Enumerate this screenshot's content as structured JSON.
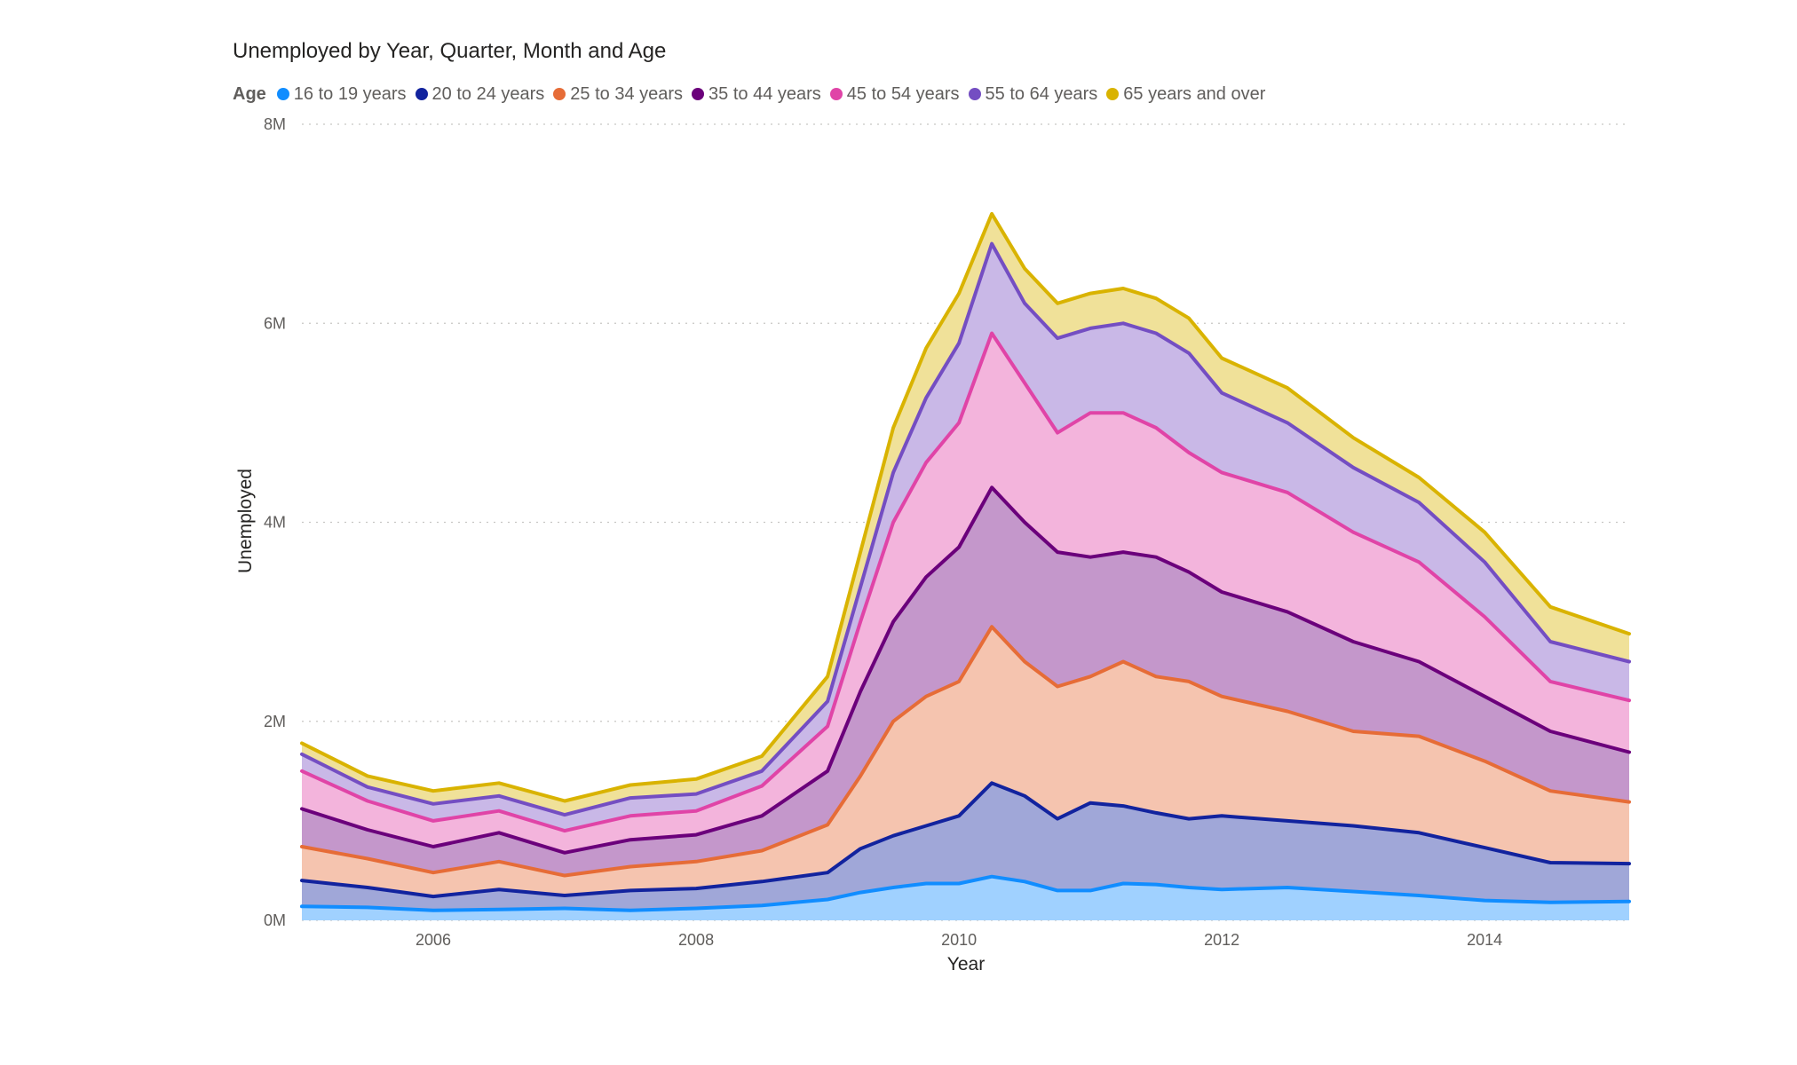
{
  "chart_data": {
    "type": "area",
    "stacked": true,
    "title": "Unemployed by Year, Quarter, Month and Age",
    "legend_title": "Age",
    "legend_position": "top-left",
    "xlabel": "Year",
    "ylabel": "Unemployed",
    "x_range": [
      2005.0,
      2015.1
    ],
    "x_ticks": [
      2006,
      2008,
      2010,
      2012,
      2014
    ],
    "x_tick_labels": [
      "2006",
      "2008",
      "2010",
      "2012",
      "2014"
    ],
    "y_range": [
      0,
      8000000
    ],
    "y_ticks": [
      0,
      2000000,
      4000000,
      6000000,
      8000000
    ],
    "y_tick_labels": [
      "0M",
      "2M",
      "4M",
      "6M",
      "8M"
    ],
    "grid": "horizontal dotted",
    "x": [
      2005.0,
      2005.5,
      2006.0,
      2006.5,
      2007.0,
      2007.5,
      2008.0,
      2008.5,
      2009.0,
      2009.25,
      2009.5,
      2009.75,
      2010.0,
      2010.25,
      2010.5,
      2010.75,
      2011.0,
      2011.25,
      2011.5,
      2011.75,
      2012.0,
      2012.5,
      2013.0,
      2013.5,
      2014.0,
      2014.5,
      2015.1
    ],
    "cumulative_top_values": [
      [
        140000,
        130000,
        100000,
        110000,
        120000,
        100000,
        120000,
        150000,
        210000,
        280000,
        330000,
        370000,
        370000,
        440000,
        390000,
        300000,
        300000,
        370000,
        360000,
        330000,
        310000,
        330000,
        290000,
        250000,
        200000,
        180000,
        190000
      ],
      [
        400000,
        330000,
        240000,
        310000,
        250000,
        300000,
        320000,
        390000,
        480000,
        720000,
        850000,
        950000,
        1050000,
        1380000,
        1250000,
        1020000,
        1180000,
        1150000,
        1080000,
        1020000,
        1050000,
        1000000,
        950000,
        880000,
        730000,
        580000,
        570000
      ],
      [
        740000,
        620000,
        480000,
        590000,
        450000,
        540000,
        590000,
        700000,
        960000,
        1450000,
        2000000,
        2250000,
        2400000,
        2950000,
        2600000,
        2350000,
        2450000,
        2600000,
        2450000,
        2400000,
        2250000,
        2100000,
        1900000,
        1850000,
        1600000,
        1300000,
        1190000
      ],
      [
        1120000,
        910000,
        740000,
        880000,
        680000,
        810000,
        860000,
        1050000,
        1500000,
        2300000,
        3000000,
        3450000,
        3750000,
        4350000,
        4000000,
        3700000,
        3650000,
        3700000,
        3650000,
        3500000,
        3300000,
        3100000,
        2800000,
        2600000,
        2250000,
        1900000,
        1690000
      ],
      [
        1500000,
        1200000,
        1000000,
        1100000,
        900000,
        1050000,
        1100000,
        1350000,
        1950000,
        3000000,
        4000000,
        4600000,
        5000000,
        5900000,
        5400000,
        4900000,
        5100000,
        5100000,
        4950000,
        4700000,
        4500000,
        4300000,
        3900000,
        3600000,
        3050000,
        2400000,
        2210000
      ],
      [
        1670000,
        1340000,
        1170000,
        1250000,
        1060000,
        1230000,
        1270000,
        1500000,
        2200000,
        3350000,
        4500000,
        5250000,
        5800000,
        6800000,
        6200000,
        5850000,
        5950000,
        6000000,
        5900000,
        5700000,
        5300000,
        5000000,
        4550000,
        4200000,
        3600000,
        2800000,
        2600000
      ],
      [
        1780000,
        1450000,
        1300000,
        1380000,
        1200000,
        1360000,
        1420000,
        1650000,
        2450000,
        3700000,
        4950000,
        5750000,
        6300000,
        7100000,
        6550000,
        6200000,
        6300000,
        6350000,
        6250000,
        6050000,
        5650000,
        5350000,
        4850000,
        4450000,
        3900000,
        3150000,
        2880000
      ]
    ],
    "series": [
      {
        "name": "16 to 19 years",
        "line_color": "#118dff",
        "fill_color": "#a0d1ff"
      },
      {
        "name": "20 to 24 years",
        "line_color": "#12239e",
        "fill_color": "#a0a7d8"
      },
      {
        "name": "25 to 34 years",
        "line_color": "#e66c37",
        "fill_color": "#f5c4af"
      },
      {
        "name": "35 to 44 years",
        "line_color": "#6b007b",
        "fill_color": "#c497cb"
      },
      {
        "name": "45 to 54 years",
        "line_color": "#e044a7",
        "fill_color": "#f3b4dc"
      },
      {
        "name": "55 to 64 years",
        "line_color": "#744ec2",
        "fill_color": "#c9b8e7"
      },
      {
        "name": "65 years and over",
        "line_color": "#d9b300",
        "fill_color": "#f0e199"
      }
    ]
  }
}
